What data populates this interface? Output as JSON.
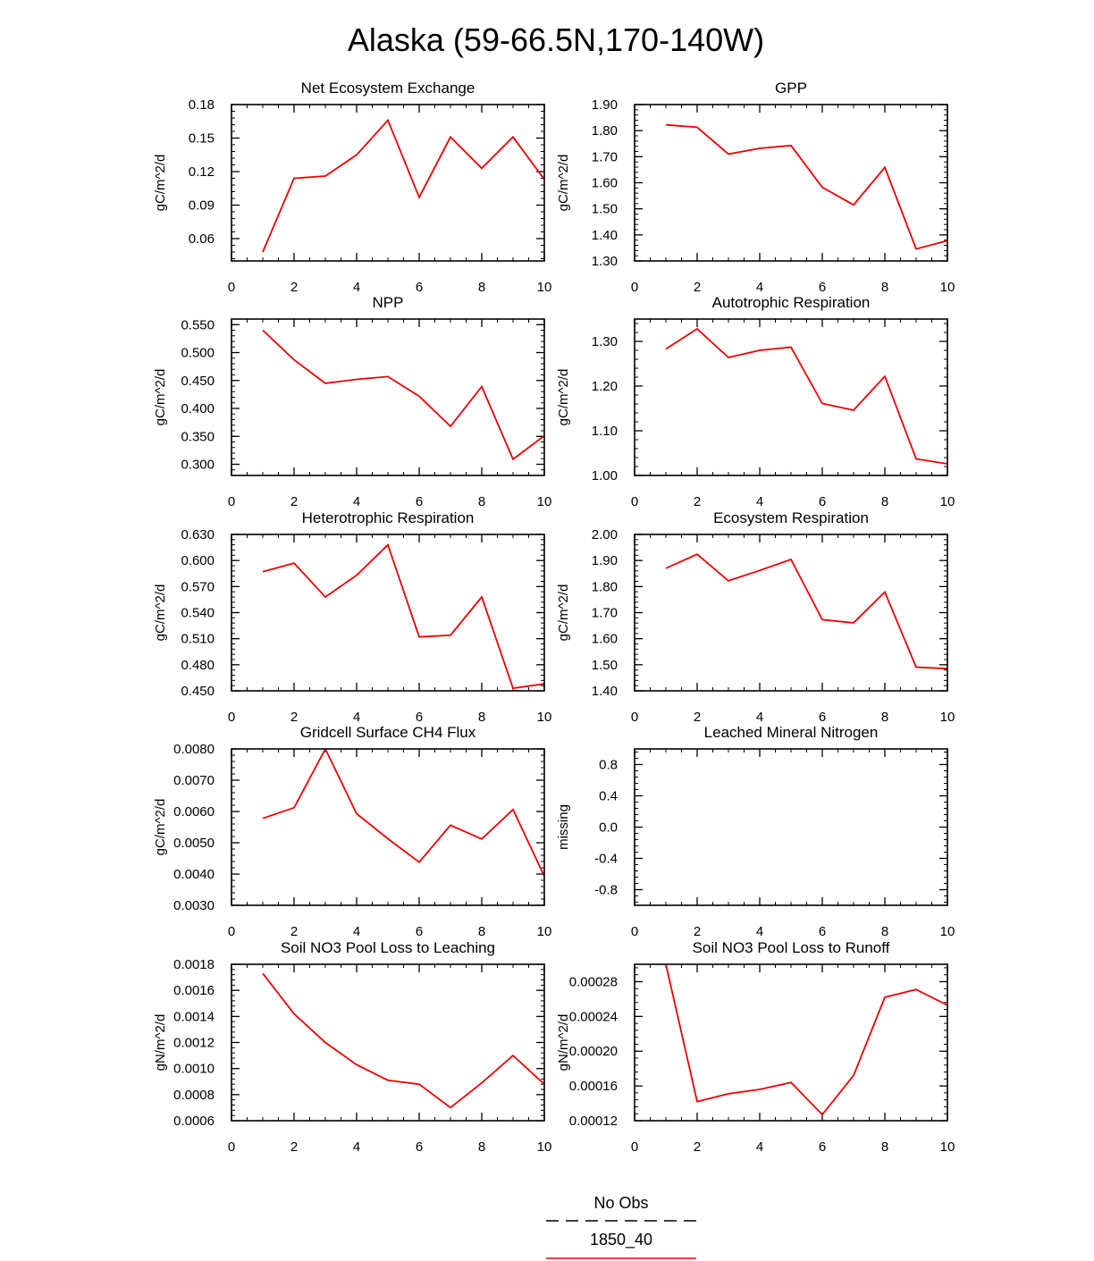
{
  "figure": {
    "title": "Alaska (59-66.5N,170-140W)",
    "legend": {
      "placement": "bottom-center",
      "items": [
        {
          "label": "No Obs",
          "style": "dashed",
          "color": "#000000"
        },
        {
          "label": "1850_40",
          "style": "solid",
          "color": "#ee0000"
        }
      ]
    }
  },
  "chart_data": [
    {
      "type": "line",
      "title": "Net Ecosystem Exchange",
      "ylabel": "gC/m^2/d",
      "xlim": [
        0,
        10
      ],
      "xticks": [
        "0",
        "2",
        "4",
        "6",
        "8",
        "10"
      ],
      "ylim": [
        0.04,
        0.18
      ],
      "yticks": [
        "0.06",
        "0.09",
        "0.12",
        "0.15",
        "0.18"
      ],
      "series": [
        {
          "name": "1850_40",
          "color": "#ee0000",
          "x": [
            1,
            2,
            3,
            4,
            5,
            6,
            7,
            8,
            9,
            10
          ],
          "y": [
            0.048,
            0.114,
            0.116,
            0.135,
            0.166,
            0.097,
            0.151,
            0.123,
            0.151,
            0.113
          ]
        }
      ]
    },
    {
      "type": "line",
      "title": "GPP",
      "ylabel": "gC/m^2/d",
      "xlim": [
        0,
        10
      ],
      "xticks": [
        "0",
        "2",
        "4",
        "6",
        "8",
        "10"
      ],
      "ylim": [
        1.3,
        1.9
      ],
      "yticks": [
        "1.30",
        "1.40",
        "1.50",
        "1.60",
        "1.70",
        "1.80",
        "1.90"
      ],
      "series": [
        {
          "name": "1850_40",
          "color": "#ee0000",
          "x": [
            1,
            2,
            3,
            4,
            5,
            6,
            7,
            8,
            9,
            10
          ],
          "y": [
            1.822,
            1.813,
            1.71,
            1.732,
            1.743,
            1.583,
            1.515,
            1.659,
            1.346,
            1.378
          ]
        }
      ]
    },
    {
      "type": "line",
      "title": "NPP",
      "ylabel": "gC/m^2/d",
      "xlim": [
        0,
        10
      ],
      "xticks": [
        "0",
        "2",
        "4",
        "6",
        "8",
        "10"
      ],
      "ylim": [
        0.28,
        0.56
      ],
      "yticks": [
        "0.300",
        "0.350",
        "0.400",
        "0.450",
        "0.500",
        "0.550"
      ],
      "series": [
        {
          "name": "1850_40",
          "color": "#ee0000",
          "x": [
            1,
            2,
            3,
            4,
            5,
            6,
            7,
            8,
            9,
            10
          ],
          "y": [
            0.54,
            0.487,
            0.445,
            0.452,
            0.457,
            0.422,
            0.368,
            0.439,
            0.309,
            0.351
          ]
        }
      ]
    },
    {
      "type": "line",
      "title": "Autotrophic Respiration",
      "ylabel": "gC/m^2/d",
      "xlim": [
        0,
        10
      ],
      "xticks": [
        "0",
        "2",
        "4",
        "6",
        "8",
        "10"
      ],
      "ylim": [
        1.0,
        1.35
      ],
      "yticks": [
        "1.00",
        "1.10",
        "1.20",
        "1.30"
      ],
      "series": [
        {
          "name": "1850_40",
          "color": "#ee0000",
          "x": [
            1,
            2,
            3,
            4,
            5,
            6,
            7,
            8,
            9,
            10
          ],
          "y": [
            1.283,
            1.328,
            1.264,
            1.28,
            1.287,
            1.161,
            1.146,
            1.222,
            1.037,
            1.026
          ]
        }
      ]
    },
    {
      "type": "line",
      "title": "Heterotrophic Respiration",
      "ylabel": "gC/m^2/d",
      "xlim": [
        0,
        10
      ],
      "xticks": [
        "0",
        "2",
        "4",
        "6",
        "8",
        "10"
      ],
      "ylim": [
        0.45,
        0.63
      ],
      "yticks": [
        "0.450",
        "0.480",
        "0.510",
        "0.540",
        "0.570",
        "0.600",
        "0.630"
      ],
      "series": [
        {
          "name": "1850_40",
          "color": "#ee0000",
          "x": [
            1,
            2,
            3,
            4,
            5,
            6,
            7,
            8,
            9,
            10
          ],
          "y": [
            0.587,
            0.597,
            0.558,
            0.583,
            0.618,
            0.512,
            0.514,
            0.558,
            0.453,
            0.458
          ]
        }
      ]
    },
    {
      "type": "line",
      "title": "Ecosystem Respiration",
      "ylabel": "gC/m^2/d",
      "xlim": [
        0,
        10
      ],
      "xticks": [
        "0",
        "2",
        "4",
        "6",
        "8",
        "10"
      ],
      "ylim": [
        1.4,
        2.0
      ],
      "yticks": [
        "1.40",
        "1.50",
        "1.60",
        "1.70",
        "1.80",
        "1.90",
        "2.00"
      ],
      "series": [
        {
          "name": "1850_40",
          "color": "#ee0000",
          "x": [
            1,
            2,
            3,
            4,
            5,
            6,
            7,
            8,
            9,
            10
          ],
          "y": [
            1.87,
            1.924,
            1.822,
            1.862,
            1.904,
            1.673,
            1.661,
            1.779,
            1.491,
            1.485
          ]
        }
      ]
    },
    {
      "type": "line",
      "title": "Gridcell Surface CH4 Flux",
      "ylabel": "gC/m^2/d",
      "xlim": [
        0,
        10
      ],
      "xticks": [
        "0",
        "2",
        "4",
        "6",
        "8",
        "10"
      ],
      "ylim": [
        0.003,
        0.008
      ],
      "yticks": [
        "0.0030",
        "0.0040",
        "0.0050",
        "0.0060",
        "0.0070",
        "0.0080"
      ],
      "series": [
        {
          "name": "1850_40",
          "color": "#ee0000",
          "x": [
            1,
            2,
            3,
            4,
            5,
            6,
            7,
            8,
            9,
            10
          ],
          "y": [
            0.00578,
            0.00612,
            0.008,
            0.00593,
            0.00513,
            0.00438,
            0.00556,
            0.00512,
            0.00606,
            0.00393
          ]
        }
      ]
    },
    {
      "type": "line",
      "title": "Leached Mineral Nitrogen",
      "ylabel": "missing",
      "xlim": [
        0,
        10
      ],
      "xticks": [
        "0",
        "2",
        "4",
        "6",
        "8",
        "10"
      ],
      "ylim": [
        -1.0,
        1.0
      ],
      "yticks": [
        "-0.8",
        "-0.4",
        "0.0",
        "0.4",
        "0.8"
      ],
      "series": []
    },
    {
      "type": "line",
      "title": "Soil NO3 Pool Loss to Leaching",
      "ylabel": "gN/m^2/d",
      "xlim": [
        0,
        10
      ],
      "xticks": [
        "0",
        "2",
        "4",
        "6",
        "8",
        "10"
      ],
      "ylim": [
        0.0006,
        0.0018
      ],
      "yticks": [
        "0.0006",
        "0.0008",
        "0.0010",
        "0.0012",
        "0.0014",
        "0.0016",
        "0.0018"
      ],
      "series": [
        {
          "name": "1850_40",
          "color": "#ee0000",
          "x": [
            1,
            2,
            3,
            4,
            5,
            6,
            7,
            8,
            9,
            10
          ],
          "y": [
            0.00173,
            0.00142,
            0.0012,
            0.00103,
            0.00091,
            0.00088,
            0.0007,
            0.00089,
            0.0011,
            0.00088
          ]
        }
      ]
    },
    {
      "type": "line",
      "title": "Soil NO3 Pool Loss to Runoff",
      "ylabel": "gN/m^2/d",
      "xlim": [
        0,
        10
      ],
      "xticks": [
        "0",
        "2",
        "4",
        "6",
        "8",
        "10"
      ],
      "ylim": [
        0.00012,
        0.0003
      ],
      "yticks": [
        "0.00012",
        "0.00016",
        "0.00020",
        "0.00024",
        "0.00028"
      ],
      "series": [
        {
          "name": "1850_40",
          "color": "#ee0000",
          "x": [
            1,
            2,
            3,
            4,
            5,
            6,
            7,
            8,
            9,
            10
          ],
          "y": [
            0.0003,
            0.000142,
            0.000151,
            0.000156,
            0.000164,
            0.000127,
            0.000172,
            0.000262,
            0.000271,
            0.000253
          ]
        }
      ]
    }
  ]
}
